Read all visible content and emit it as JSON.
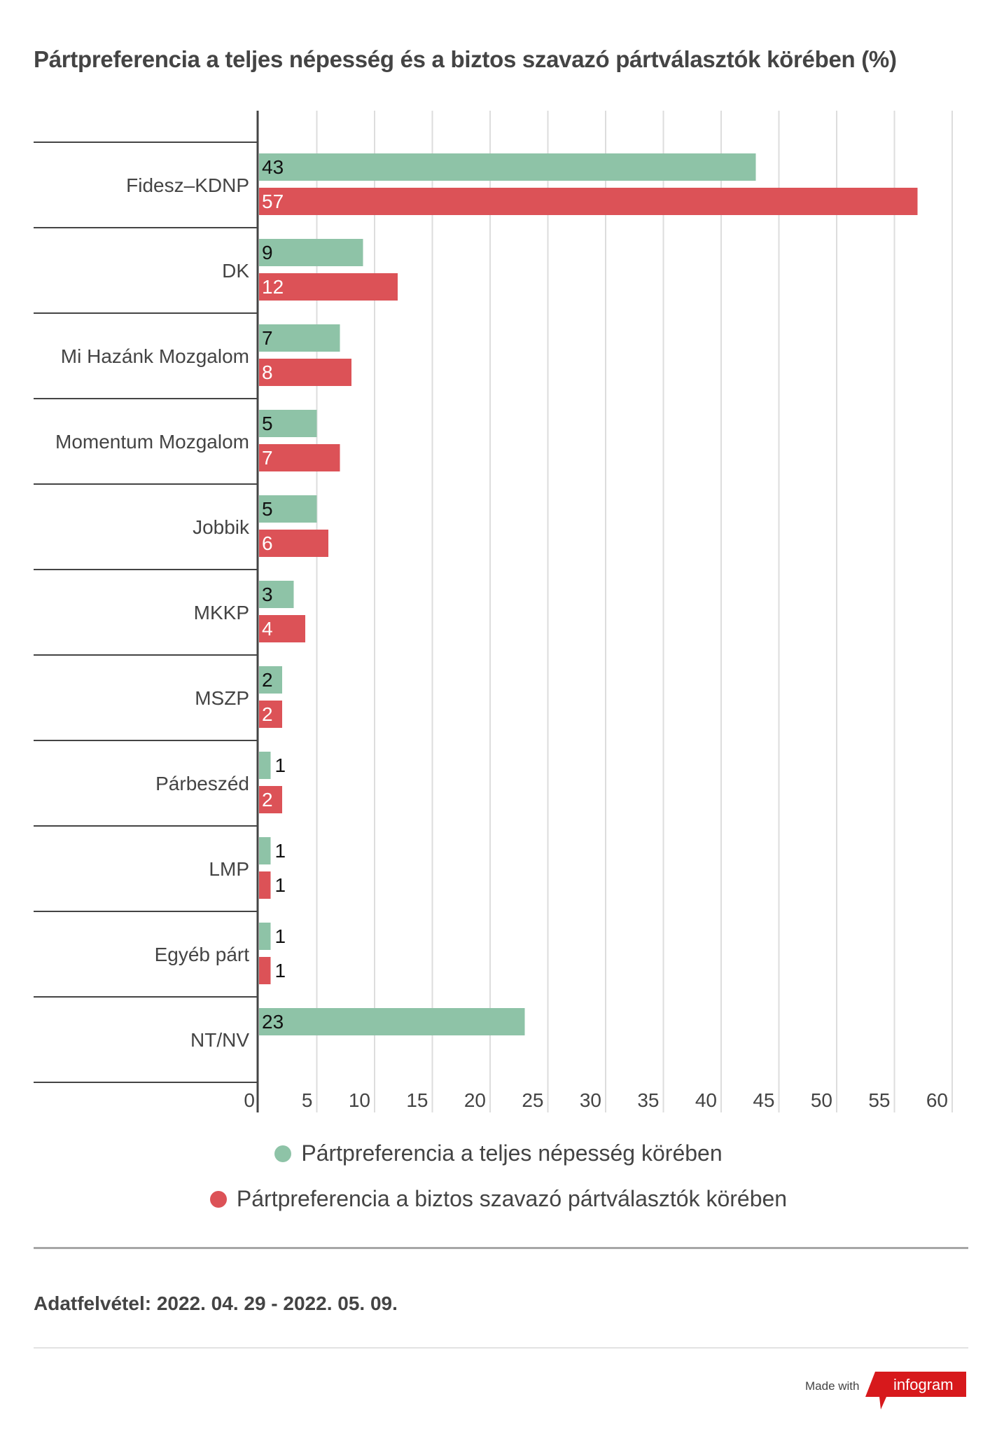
{
  "title": "Pártpreferencia a teljes népesség és a biztos szavazó pártválasztók körében (%)",
  "colors": {
    "series_1": "#8ec3a7",
    "series_2": "#dc5257",
    "text": "#444444",
    "grid": "#dddddd",
    "badge": "#d7191c"
  },
  "chart_data": {
    "type": "bar",
    "orientation": "horizontal",
    "title": "Pártpreferencia a teljes népesség és a biztos szavazó pártválasztók körében (%)",
    "xlabel": "",
    "ylabel": "",
    "xlim": [
      0,
      60
    ],
    "x_ticks": [
      "0",
      "5",
      "10",
      "15",
      "20",
      "25",
      "30",
      "35",
      "40",
      "45",
      "50",
      "55",
      "60"
    ],
    "grid": true,
    "legend_position": "bottom",
    "categories": [
      "Fidesz–KDNP",
      "DK",
      "Mi Hazánk Mozgalom",
      "Momentum Mozgalom",
      "Jobbik",
      "MKKP",
      "MSZP",
      "Párbeszéd",
      "LMP",
      "Egyéb párt",
      "NT/NV"
    ],
    "series": [
      {
        "name": "Pártpreferencia a teljes népesség körében",
        "values": [
          43,
          9,
          7,
          5,
          5,
          3,
          2,
          1,
          1,
          1,
          23
        ]
      },
      {
        "name": "Pártpreferencia a biztos szavazó pártválasztók körében",
        "values": [
          57,
          12,
          8,
          7,
          6,
          4,
          2,
          2,
          1,
          1,
          null
        ]
      }
    ]
  },
  "legend": [
    {
      "label": "Pártpreferencia a teljes népesség körében"
    },
    {
      "label": "Pártpreferencia a biztos szavazó pártválasztók körében"
    }
  ],
  "footer": {
    "source": "Adatfelvétel:  2022. 04. 29 - 2022. 05. 09.",
    "made_with": "Made with",
    "brand": "infogram"
  }
}
